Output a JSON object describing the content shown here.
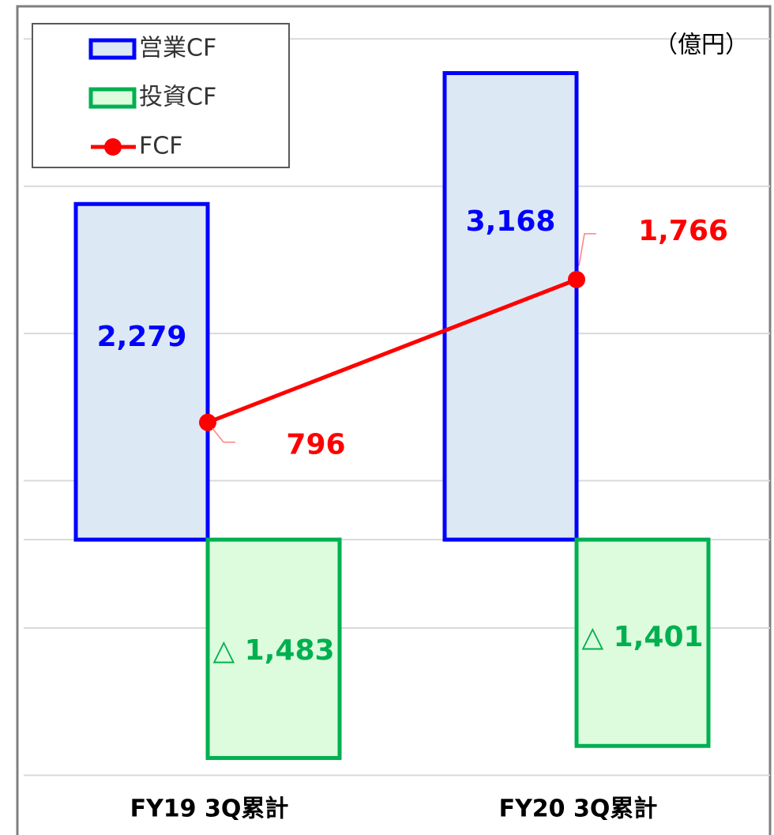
{
  "chart_data": {
    "type": "bar",
    "unit": "（億円）",
    "categories": [
      "FY19 3Q累計",
      "FY20 3Q累計"
    ],
    "series": [
      {
        "name": "営業CF",
        "type": "bar",
        "color": "#0000ff",
        "fill": "#dde8f5",
        "values": [
          2279,
          3168
        ],
        "value_labels": [
          "2,279",
          "3,168"
        ]
      },
      {
        "name": "投資CF",
        "type": "bar",
        "color": "#00b050",
        "fill": "#ddfbdd",
        "values": [
          -1483,
          -1401
        ],
        "value_labels": [
          "△ 1,483",
          "△ 1,401"
        ]
      },
      {
        "name": "FCF",
        "type": "line",
        "color": "#ff0000",
        "values": [
          796,
          1766
        ],
        "value_labels": [
          "796",
          "1,766"
        ]
      }
    ],
    "ylim": [
      -1700,
      3600
    ],
    "yticks": [
      -1600,
      -600,
      400,
      1400,
      2400,
      3400
    ],
    "grid": true,
    "legend": "upper left"
  }
}
